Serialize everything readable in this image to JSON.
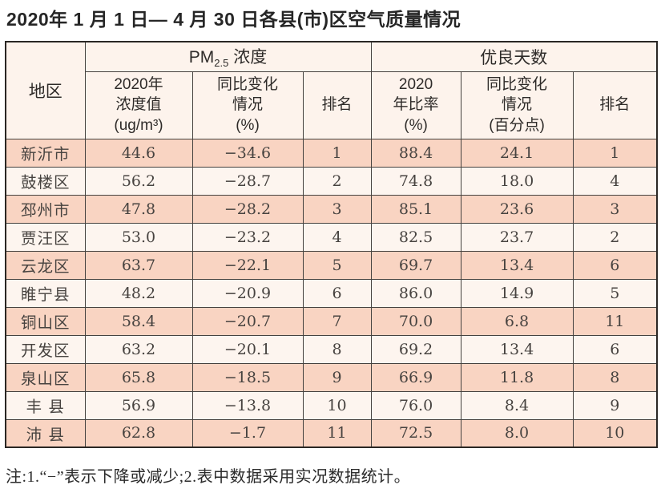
{
  "title": "2020年 1 月 1 日— 4 月 30 日各县(市)区空气质量情况",
  "note": "注:1.“−”表示下降或减少;2.表中数据采用实况数据统计。",
  "colors": {
    "row_pink": "#f9d4c2",
    "row_light": "#fdf5ef",
    "header_bg": "#fdf3ec",
    "grid_border": "#45423f",
    "outer_border": "#2a2724"
  },
  "table": {
    "header": {
      "region": "地区",
      "pm25_group": {
        "base": "PM",
        "sub": "2.5",
        "suffix": " 浓度"
      },
      "good_days_group": "优良天数",
      "sub_headers": {
        "pm_value": "2020年\n浓度值\n(ug/m³)",
        "pm_change": "同比变化\n情况\n(%)",
        "pm_rank": "排名",
        "good_rate": "2020\n年比率\n(%)",
        "good_change": "同比变化\n情况\n(百分点)",
        "good_rank": "排名"
      }
    },
    "rows": [
      {
        "region": "新沂市",
        "pm_value": "44.6",
        "pm_change": "−34.6",
        "pm_rank": "1",
        "good_rate": "88.4",
        "good_change": "24.1",
        "good_rank": "1"
      },
      {
        "region": "鼓楼区",
        "pm_value": "56.2",
        "pm_change": "−28.7",
        "pm_rank": "2",
        "good_rate": "74.8",
        "good_change": "18.0",
        "good_rank": "4"
      },
      {
        "region": "邳州市",
        "pm_value": "47.8",
        "pm_change": "−28.2",
        "pm_rank": "3",
        "good_rate": "85.1",
        "good_change": "23.6",
        "good_rank": "3"
      },
      {
        "region": "贾汪区",
        "pm_value": "53.0",
        "pm_change": "−23.2",
        "pm_rank": "4",
        "good_rate": "82.5",
        "good_change": "23.7",
        "good_rank": "2"
      },
      {
        "region": "云龙区",
        "pm_value": "63.7",
        "pm_change": "−22.1",
        "pm_rank": "5",
        "good_rate": "69.7",
        "good_change": "13.4",
        "good_rank": "6"
      },
      {
        "region": "睢宁县",
        "pm_value": "48.2",
        "pm_change": "−20.9",
        "pm_rank": "6",
        "good_rate": "86.0",
        "good_change": "14.9",
        "good_rank": "5"
      },
      {
        "region": "铜山区",
        "pm_value": "58.4",
        "pm_change": "−20.7",
        "pm_rank": "7",
        "good_rate": "70.0",
        "good_change": "6.8",
        "good_rank": "11"
      },
      {
        "region": "开发区",
        "pm_value": "63.2",
        "pm_change": "−20.1",
        "pm_rank": "8",
        "good_rate": "69.2",
        "good_change": "13.4",
        "good_rank": "6"
      },
      {
        "region": "泉山区",
        "pm_value": "65.8",
        "pm_change": "−18.5",
        "pm_rank": "9",
        "good_rate": "66.9",
        "good_change": "11.8",
        "good_rank": "8"
      },
      {
        "region": "丰 县",
        "pm_value": "56.9",
        "pm_change": "−13.8",
        "pm_rank": "10",
        "good_rate": "76.0",
        "good_change": "8.4",
        "good_rank": "9"
      },
      {
        "region": "沛 县",
        "pm_value": "62.8",
        "pm_change": "−1.7",
        "pm_rank": "11",
        "good_rate": "72.5",
        "good_change": "8.0",
        "good_rank": "10"
      }
    ]
  }
}
